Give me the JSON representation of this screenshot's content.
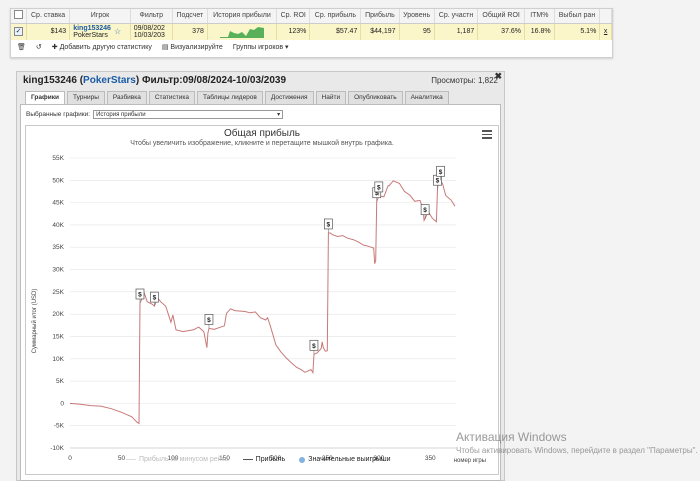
{
  "stats_table": {
    "headers": [
      "Ср. ставка",
      "Игрок",
      "Фильтр",
      "Подсчет",
      "История прибыли",
      "Ср. ROI",
      "Ср. прибыль",
      "Прибыль",
      "Уровень",
      "Ср. участн",
      "Общий ROI",
      "ITM%",
      "Выбыл ран"
    ],
    "row": {
      "avg_stake": "$143",
      "player_name": "king153246",
      "player_site": "PokerStars",
      "filter_from": "09/08/202",
      "filter_to": "10/03/203",
      "count": "378",
      "avg_roi": "123%",
      "avg_profit": "$57.47",
      "profit": "$44,197",
      "level": "95",
      "avg_entrants": "1,187",
      "total_roi": "37.6%",
      "itm": "16.8%",
      "early_out": "5.1%",
      "remove": "x"
    }
  },
  "toolbar": {
    "add_label": "Добавить другую статистику",
    "visualize_label": "Визуализируйте",
    "groups_label": "Группы игроков ▾"
  },
  "window": {
    "player": "king153246",
    "site": "PokerStars",
    "filter": "Фильтр:09/08/2024-10/03/2039",
    "views_label": "Просмотры:",
    "views_count": "1,822",
    "close": "✖"
  },
  "tabs": [
    "Графики",
    "Турниры",
    "Разбивка",
    "Статистика",
    "Таблицы лидеров",
    "Достижения",
    "Найти",
    "Опубликовать",
    "Аналитика"
  ],
  "graph_select": {
    "label": "Выбранные графики:",
    "value": "История прибыли"
  },
  "chart_data": {
    "type": "line",
    "title": "Общая прибыль",
    "subtitle": "Чтобы увеличить изображение, кликните и перетащите мышкой внутрь графика.",
    "ylabel": "Суммарный итог (USD)",
    "xlabel": "номер игры",
    "x_ticks": [
      0,
      50,
      100,
      150,
      200,
      250,
      300,
      350
    ],
    "y_ticks": [
      "-10K",
      "-5K",
      "0",
      "5K",
      "10K",
      "15K",
      "20K",
      "25K",
      "30K",
      "35K",
      "40K",
      "45K",
      "50K",
      "55K"
    ],
    "xlim": [
      0,
      375
    ],
    "ylim": [
      -10000,
      55000
    ],
    "grid": true,
    "legend": [
      "Прибыль за минусом рейка",
      "Прибыль",
      "Значительные выигрыши"
    ],
    "series": [
      {
        "name": "Прибыль",
        "color": "#c87878",
        "points": [
          [
            0,
            0
          ],
          [
            10,
            -200
          ],
          [
            20,
            -500
          ],
          [
            30,
            -600
          ],
          [
            40,
            -1200
          ],
          [
            50,
            -2000
          ],
          [
            60,
            -3000
          ],
          [
            65,
            -4200
          ],
          [
            67,
            -4500
          ],
          [
            68,
            22500
          ],
          [
            70,
            23500
          ],
          [
            72,
            24800
          ],
          [
            75,
            22800
          ],
          [
            80,
            22200
          ],
          [
            82,
            21800
          ],
          [
            85,
            23700
          ],
          [
            88,
            22800
          ],
          [
            93,
            21800
          ],
          [
            98,
            18200
          ],
          [
            100,
            19800
          ],
          [
            103,
            16500
          ],
          [
            110,
            16100
          ],
          [
            120,
            16500
          ],
          [
            125,
            17100
          ],
          [
            130,
            16100
          ],
          [
            132,
            13700
          ],
          [
            133,
            12500
          ],
          [
            134,
            15800
          ],
          [
            135,
            16800
          ],
          [
            140,
            16600
          ],
          [
            150,
            17400
          ],
          [
            152,
            20200
          ],
          [
            156,
            21200
          ],
          [
            160,
            20800
          ],
          [
            170,
            20600
          ],
          [
            175,
            20300
          ],
          [
            180,
            20500
          ],
          [
            185,
            19200
          ],
          [
            190,
            18700
          ],
          [
            192,
            19200
          ],
          [
            195,
            17100
          ],
          [
            200,
            13100
          ],
          [
            205,
            11500
          ],
          [
            210,
            10200
          ],
          [
            215,
            9100
          ],
          [
            220,
            8100
          ],
          [
            225,
            7500
          ],
          [
            228,
            7000
          ],
          [
            230,
            7100
          ],
          [
            234,
            7600
          ],
          [
            236,
            6900
          ],
          [
            237,
            11000
          ],
          [
            240,
            11300
          ],
          [
            244,
            12300
          ],
          [
            245,
            13800
          ],
          [
            246,
            12600
          ],
          [
            248,
            11700
          ],
          [
            250,
            11800
          ],
          [
            251,
            38200
          ],
          [
            253,
            38200
          ],
          [
            255,
            37800
          ],
          [
            260,
            37400
          ],
          [
            265,
            37600
          ],
          [
            270,
            37000
          ],
          [
            275,
            36700
          ],
          [
            280,
            36200
          ],
          [
            285,
            35500
          ],
          [
            290,
            35200
          ],
          [
            295,
            34800
          ],
          [
            296,
            31300
          ],
          [
            297,
            32000
          ],
          [
            298,
            45200
          ],
          [
            300,
            46500
          ],
          [
            305,
            46300
          ],
          [
            309,
            48800
          ],
          [
            310,
            48800
          ],
          [
            314,
            49900
          ],
          [
            320,
            49300
          ],
          [
            325,
            47500
          ],
          [
            330,
            46700
          ],
          [
            335,
            45300
          ],
          [
            340,
            45500
          ],
          [
            343,
            43500
          ],
          [
            344,
            41000
          ],
          [
            345,
            41400
          ],
          [
            348,
            43000
          ],
          [
            352,
            41500
          ],
          [
            356,
            40700
          ],
          [
            357,
            48000
          ],
          [
            358,
            50500
          ],
          [
            360,
            50000
          ],
          [
            362,
            49200
          ],
          [
            365,
            46600
          ],
          [
            370,
            45600
          ],
          [
            374,
            44200
          ]
        ]
      }
    ],
    "big_wins_markers": [
      {
        "x": 68,
        "y": 22500,
        "label": "$"
      },
      {
        "x": 82,
        "y": 21800,
        "label": "$"
      },
      {
        "x": 135,
        "y": 16800,
        "label": "$"
      },
      {
        "x": 237,
        "y": 11000,
        "label": "$"
      },
      {
        "x": 251,
        "y": 38200,
        "label": "$"
      },
      {
        "x": 298,
        "y": 45200,
        "label": "$"
      },
      {
        "x": 300,
        "y": 46500,
        "label": "$"
      },
      {
        "x": 345,
        "y": 41400,
        "label": "$"
      },
      {
        "x": 357,
        "y": 48000,
        "label": "$"
      },
      {
        "x": 360,
        "y": 50000,
        "label": "$"
      }
    ]
  },
  "watermark": {
    "line1": "Активация Windows",
    "line2": "Чтобы активировать Windows, перейдите в раздел \"Параметры\"."
  }
}
